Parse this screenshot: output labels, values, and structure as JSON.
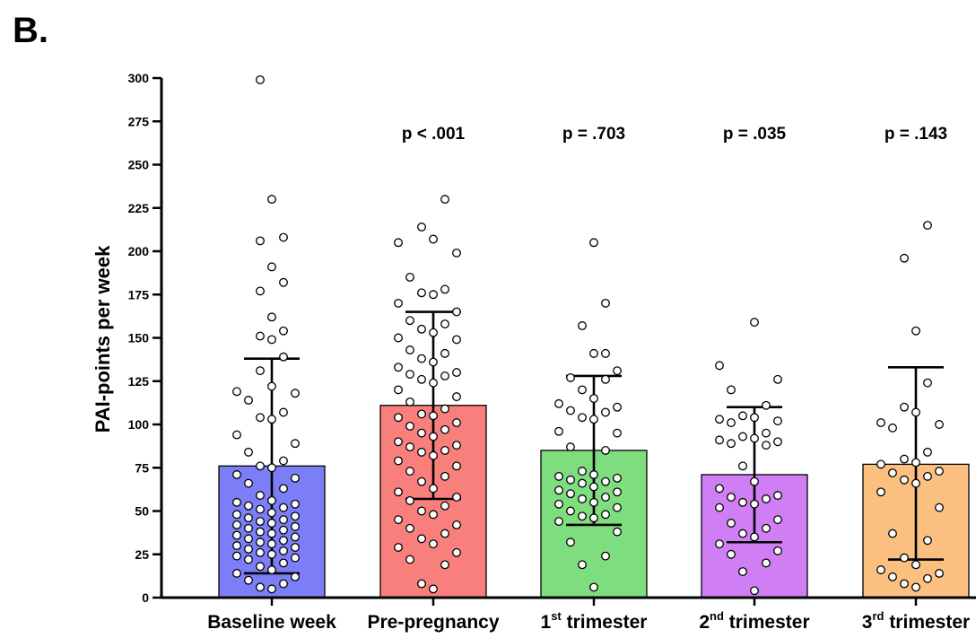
{
  "panel_label": "B.",
  "chart_data": {
    "type": "bar",
    "ylabel": "PAI-points per week",
    "ylim": [
      0,
      300
    ],
    "yticks": [
      0,
      25,
      50,
      75,
      100,
      125,
      150,
      175,
      200,
      225,
      250,
      275,
      300
    ],
    "categories": [
      {
        "main": "Baseline week",
        "num": "",
        "sup": ""
      },
      {
        "main": " trimester",
        "num": "",
        "sup": ""
      },
      {
        "main": " trimester",
        "num": "1",
        "sup": "st"
      },
      {
        "main": " trimester",
        "num": "2",
        "sup": "nd"
      },
      {
        "main": " trimester",
        "num": "3",
        "sup": "rd"
      }
    ],
    "category_labels": [
      "Baseline week",
      "Pre-pregnancy",
      "1st trimester",
      "2nd trimester",
      "3rd trimester"
    ],
    "values": [
      76,
      111,
      85,
      71,
      77
    ],
    "error_low": [
      14,
      57,
      42,
      32,
      22
    ],
    "error_high": [
      138,
      165,
      128,
      110,
      133
    ],
    "p_values": [
      "",
      "p < .001",
      "p = .703",
      "p = .035",
      "p = .143"
    ],
    "colors": [
      "#7b7ef6",
      "#f97f7d",
      "#7edd7e",
      "#d07ef3",
      "#fbbf7f"
    ],
    "points": [
      [
        299,
        230,
        208,
        206,
        191,
        182,
        177,
        162,
        154,
        151,
        149,
        139,
        131,
        122,
        119,
        118,
        114,
        107,
        104,
        103,
        94,
        89,
        84,
        79,
        76,
        75,
        71,
        69,
        66,
        63,
        59,
        56,
        55,
        54,
        53,
        52,
        51,
        49,
        48,
        47,
        46,
        45,
        44,
        43,
        42,
        41,
        40,
        39,
        38,
        37,
        36,
        35,
        34,
        33,
        32,
        31,
        30,
        29,
        28,
        27,
        26,
        25,
        24,
        23,
        22,
        20,
        18,
        16,
        14,
        12,
        10,
        8,
        6,
        5
      ],
      [
        230,
        214,
        207,
        205,
        199,
        185,
        178,
        176,
        175,
        170,
        165,
        160,
        158,
        155,
        153,
        150,
        149,
        143,
        141,
        138,
        136,
        133,
        130,
        129,
        128,
        126,
        124,
        120,
        116,
        113,
        109,
        106,
        105,
        104,
        101,
        99,
        97,
        95,
        93,
        90,
        88,
        87,
        85,
        84,
        82,
        79,
        76,
        73,
        70,
        67,
        63,
        61,
        58,
        56,
        53,
        50,
        48,
        45,
        42,
        40,
        37,
        34,
        31,
        29,
        26,
        22,
        19,
        8,
        5
      ],
      [
        205,
        170,
        157,
        141,
        141,
        131,
        127,
        126,
        120,
        115,
        112,
        110,
        108,
        107,
        104,
        103,
        96,
        95,
        87,
        85,
        73,
        71,
        70,
        69,
        68,
        67,
        66,
        64,
        62,
        61,
        60,
        58,
        57,
        55,
        54,
        52,
        50,
        48,
        47,
        46,
        44,
        38,
        32,
        24,
        19,
        6
      ],
      [
        159,
        134,
        126,
        120,
        111,
        105,
        104,
        103,
        102,
        101,
        95,
        93,
        92,
        91,
        90,
        89,
        88,
        76,
        67,
        63,
        59,
        58,
        57,
        55,
        54,
        52,
        45,
        43,
        40,
        37,
        35,
        31,
        27,
        25,
        20,
        15,
        4
      ],
      [
        215,
        196,
        154,
        124,
        110,
        107,
        101,
        100,
        98,
        84,
        80,
        78,
        77,
        73,
        72,
        70,
        68,
        66,
        61,
        52,
        37,
        33,
        23,
        19,
        16,
        14,
        12,
        11,
        8,
        6
      ]
    ]
  }
}
